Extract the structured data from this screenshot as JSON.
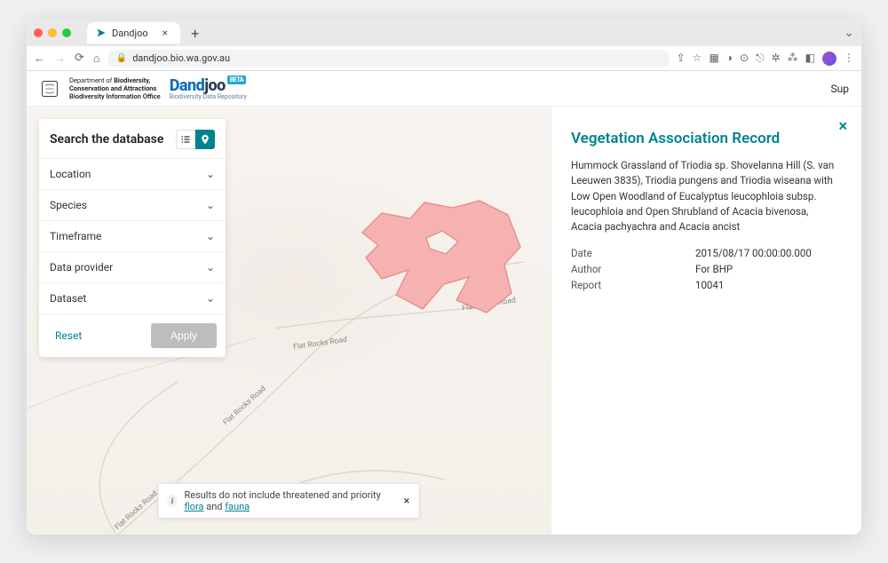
{
  "browser": {
    "tab_title": "Dandjoo",
    "url": "dandjoo.bio.wa.gov.au"
  },
  "header": {
    "department_line1": "Department of ",
    "department_bold": "Biodiversity,\nConservation and Attractions",
    "department_line2": "Biodiversity Information Office",
    "logo_main": "Dandjoo",
    "logo_beta": "BETA",
    "logo_sub": "Biodiversity Data Repository",
    "nav_support": "Sup"
  },
  "search": {
    "title": "Search the database",
    "sections": [
      "Location",
      "Species",
      "Timeframe",
      "Data provider",
      "Dataset"
    ],
    "reset": "Reset",
    "apply": "Apply"
  },
  "map": {
    "road_labels": [
      "Flat Rocks Road",
      "Flat Rocks Road",
      "Flat Rocks Road",
      "Flat Rocks Road"
    ],
    "polygon_fill": "#f5b2b0",
    "polygon_stroke": "#e88a87",
    "background": "#f6f3ef"
  },
  "notice": {
    "prefix": "Results do not include threatened and priority ",
    "link1": "flora",
    "mid": " and ",
    "link2": "fauna"
  },
  "record": {
    "title": "Vegetation Association Record",
    "description": "Hummock Grassland of Triodia sp. Shovelanna Hill (S. van Leeuwen 3835), Triodia pungens and Triodia wiseana with Low Open Woodland of Eucalyptus leucophloia subsp. leucophloia and Open Shrubland of Acacia bivenosa, Acacia pachyachra and Acacia ancist",
    "meta": [
      {
        "label": "Date",
        "value": "2015/08/17 00:00:00.000"
      },
      {
        "label": "Author",
        "value": "For BHP"
      },
      {
        "label": "Report",
        "value": "10041"
      }
    ]
  },
  "colors": {
    "accent": "#00838f",
    "logo_blue": "#0f6fb5",
    "logo_dark": "#2c3e50"
  }
}
